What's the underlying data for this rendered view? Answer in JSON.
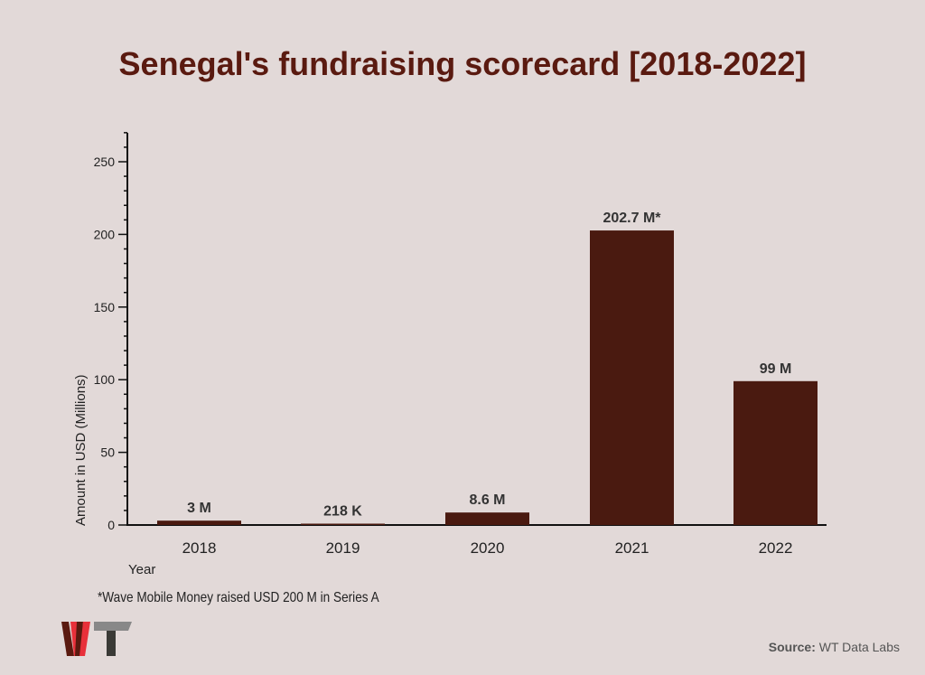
{
  "chart_data": {
    "type": "bar",
    "title": "Senegal's fundraising scorecard [2018-2022]",
    "categories": [
      "2018",
      "2019",
      "2020",
      "2021",
      "2022"
    ],
    "values": [
      3,
      0.218,
      8.6,
      202.7,
      99
    ],
    "data_labels": [
      "3 M",
      "218 K",
      "8.6 M",
      "202.7 M*",
      "99 M"
    ],
    "xlabel": "Year",
    "ylabel": "Amount in USD (Millions)",
    "ylim": [
      0,
      270
    ],
    "yticks": [
      0,
      50,
      100,
      150,
      200,
      250
    ],
    "grid": false,
    "bar_color": "#4a1a10"
  },
  "footnote": "*Wave Mobile Money raised USD 200 M in Series A",
  "source": {
    "label": "Source:",
    "value": "WT Data Labs"
  },
  "logo": "WT"
}
